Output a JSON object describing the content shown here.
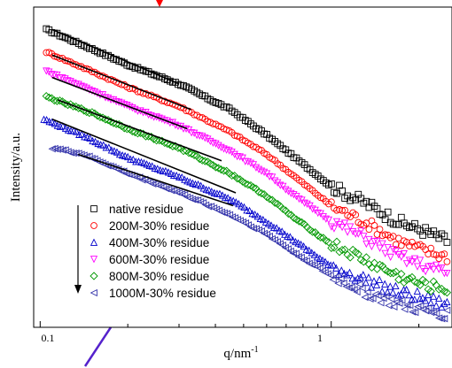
{
  "chart_data": {
    "type": "scatter",
    "xlabel": "q/nm",
    "xlabel_sup": "-1",
    "ylabel": "Intensity/a.u.",
    "x_scale": "log",
    "xlim": [
      0.095,
      2.6
    ],
    "x_ticks": [
      {
        "value": 0.1,
        "label": "0.1"
      },
      {
        "value": 1,
        "label": "1"
      }
    ],
    "y_ticks_shown": false,
    "grid": false,
    "legend_position": "bottom-left",
    "legend_arrow": "down",
    "series": [
      {
        "name": "native residue",
        "marker": "square",
        "color": "#000000",
        "points": [
          [
            0.105,
            0.93
          ],
          [
            0.15,
            0.87
          ],
          [
            0.2,
            0.82
          ],
          [
            0.3,
            0.76
          ],
          [
            0.45,
            0.68
          ],
          [
            0.6,
            0.6
          ],
          [
            0.75,
            0.53
          ],
          [
            1.0,
            0.44
          ],
          [
            1.3,
            0.39
          ],
          [
            1.7,
            0.33
          ],
          [
            2.1,
            0.3
          ],
          [
            2.5,
            0.27
          ]
        ],
        "fit": [
          [
            0.11,
            0.93
          ],
          [
            0.3,
            0.76
          ]
        ]
      },
      {
        "name": "200M-30% residue",
        "marker": "circle",
        "color": "#ff0000",
        "points": [
          [
            0.105,
            0.86
          ],
          [
            0.15,
            0.8
          ],
          [
            0.2,
            0.75
          ],
          [
            0.3,
            0.69
          ],
          [
            0.45,
            0.61
          ],
          [
            0.6,
            0.54
          ],
          [
            0.75,
            0.47
          ],
          [
            1.0,
            0.38
          ],
          [
            1.3,
            0.33
          ],
          [
            1.7,
            0.27
          ],
          [
            2.1,
            0.24
          ],
          [
            2.5,
            0.22
          ]
        ],
        "fit": [
          [
            0.11,
            0.85
          ],
          [
            0.33,
            0.68
          ]
        ]
      },
      {
        "name": "400M-30% residue",
        "marker": "triangle-up",
        "color": "#0000cc",
        "points": [
          [
            0.103,
            0.65
          ],
          [
            0.14,
            0.6
          ],
          [
            0.2,
            0.53
          ],
          [
            0.3,
            0.47
          ],
          [
            0.45,
            0.4
          ],
          [
            0.6,
            0.33
          ],
          [
            0.75,
            0.27
          ],
          [
            1.0,
            0.19
          ],
          [
            1.3,
            0.15
          ],
          [
            1.7,
            0.11
          ],
          [
            2.1,
            0.09
          ],
          [
            2.5,
            0.07
          ]
        ],
        "fit": [
          [
            0.11,
            0.65
          ],
          [
            0.47,
            0.42
          ]
        ]
      },
      {
        "name": "600M-30% residue",
        "marker": "triangle-down",
        "color": "#ff00ff",
        "points": [
          [
            0.105,
            0.8
          ],
          [
            0.15,
            0.74
          ],
          [
            0.2,
            0.69
          ],
          [
            0.3,
            0.63
          ],
          [
            0.45,
            0.55
          ],
          [
            0.6,
            0.48
          ],
          [
            0.75,
            0.41
          ],
          [
            1.0,
            0.33
          ],
          [
            1.3,
            0.28
          ],
          [
            1.7,
            0.22
          ],
          [
            2.1,
            0.19
          ],
          [
            2.5,
            0.17
          ]
        ],
        "fit": [
          [
            0.11,
            0.78
          ],
          [
            0.32,
            0.62
          ]
        ]
      },
      {
        "name": "800M-30% residue",
        "marker": "diamond",
        "color": "#009900",
        "points": [
          [
            0.105,
            0.72
          ],
          [
            0.15,
            0.67
          ],
          [
            0.2,
            0.62
          ],
          [
            0.3,
            0.56
          ],
          [
            0.45,
            0.48
          ],
          [
            0.6,
            0.41
          ],
          [
            0.75,
            0.34
          ],
          [
            1.0,
            0.26
          ],
          [
            1.3,
            0.21
          ],
          [
            1.7,
            0.16
          ],
          [
            2.1,
            0.13
          ],
          [
            2.5,
            0.12
          ]
        ],
        "fit": [
          [
            0.115,
            0.71
          ],
          [
            0.42,
            0.52
          ]
        ]
      },
      {
        "name": "1000M-30% residue",
        "marker": "triangle-left",
        "color": "#3333aa",
        "points": [
          [
            0.11,
            0.56
          ],
          [
            0.14,
            0.54
          ],
          [
            0.2,
            0.48
          ],
          [
            0.3,
            0.42
          ],
          [
            0.45,
            0.35
          ],
          [
            0.6,
            0.29
          ],
          [
            0.75,
            0.23
          ],
          [
            1.0,
            0.16
          ],
          [
            1.3,
            0.11
          ],
          [
            1.7,
            0.07
          ],
          [
            2.1,
            0.05
          ],
          [
            2.5,
            0.04
          ]
        ],
        "fit": [
          [
            0.135,
            0.54
          ],
          [
            0.46,
            0.38
          ]
        ]
      }
    ]
  }
}
